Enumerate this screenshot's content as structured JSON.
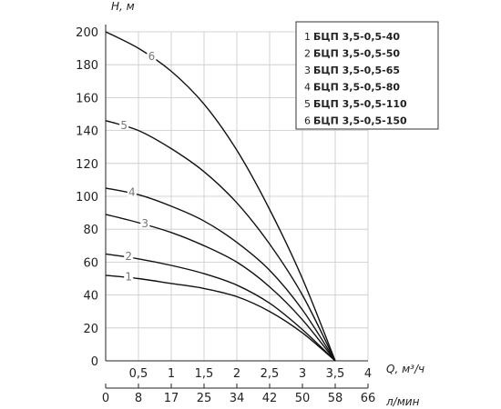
{
  "chart_data": {
    "type": "line",
    "ylabel": "H, м",
    "xlabel": "Q, м³/ч",
    "x2label": "л/мин",
    "ylim": [
      0,
      200
    ],
    "xlim": [
      0,
      4
    ],
    "yticks": [
      "0",
      "20",
      "40",
      "60",
      "80",
      "100",
      "120",
      "140",
      "160",
      "180",
      "200"
    ],
    "xticks": [
      "0,5",
      "1",
      "1,5",
      "2",
      "2,5",
      "3",
      "3,5",
      "4"
    ],
    "x2ticks": [
      "0",
      "8",
      "17",
      "25",
      "34",
      "42",
      "50",
      "58",
      "66"
    ],
    "grid": true,
    "legend": "top-right",
    "series": [
      {
        "num": "1",
        "name": "БЦП 3,5-0,5-40",
        "label": "1",
        "points": [
          [
            0,
            52
          ],
          [
            0.5,
            50
          ],
          [
            1,
            47
          ],
          [
            1.5,
            44
          ],
          [
            2,
            39
          ],
          [
            2.5,
            30
          ],
          [
            3,
            17
          ],
          [
            3.5,
            0
          ]
        ]
      },
      {
        "num": "2",
        "name": "БЦП 3,5-0,5-50",
        "label": "2",
        "points": [
          [
            0,
            65
          ],
          [
            0.5,
            62
          ],
          [
            1,
            58
          ],
          [
            1.5,
            53
          ],
          [
            2,
            46
          ],
          [
            2.5,
            35
          ],
          [
            3,
            19
          ],
          [
            3.5,
            0
          ]
        ]
      },
      {
        "num": "3",
        "name": "БЦП 3,5-0,5-65",
        "label": "3",
        "points": [
          [
            0,
            89
          ],
          [
            0.5,
            84
          ],
          [
            1,
            78
          ],
          [
            1.5,
            70
          ],
          [
            2,
            60
          ],
          [
            2.5,
            45
          ],
          [
            3,
            25
          ],
          [
            3.5,
            0
          ]
        ]
      },
      {
        "num": "4",
        "name": "БЦП 3,5-0,5-80",
        "label": "4",
        "points": [
          [
            0,
            105
          ],
          [
            0.5,
            101
          ],
          [
            1,
            94
          ],
          [
            1.5,
            85
          ],
          [
            2,
            72
          ],
          [
            2.5,
            55
          ],
          [
            3,
            31
          ],
          [
            3.5,
            0
          ]
        ]
      },
      {
        "num": "5",
        "name": "БЦП 3,5-0,5-110",
        "label": "5",
        "points": [
          [
            0,
            146
          ],
          [
            0.5,
            140
          ],
          [
            1,
            129
          ],
          [
            1.5,
            115
          ],
          [
            2,
            96
          ],
          [
            2.5,
            71
          ],
          [
            3,
            40
          ],
          [
            3.5,
            0
          ]
        ]
      },
      {
        "num": "6",
        "name": "БЦП 3,5-0,5-150",
        "label": "6",
        "points": [
          [
            0,
            200
          ],
          [
            0.5,
            190
          ],
          [
            1,
            176
          ],
          [
            1.5,
            156
          ],
          [
            2,
            128
          ],
          [
            2.5,
            92
          ],
          [
            3,
            50
          ],
          [
            3.5,
            0
          ]
        ]
      }
    ]
  }
}
